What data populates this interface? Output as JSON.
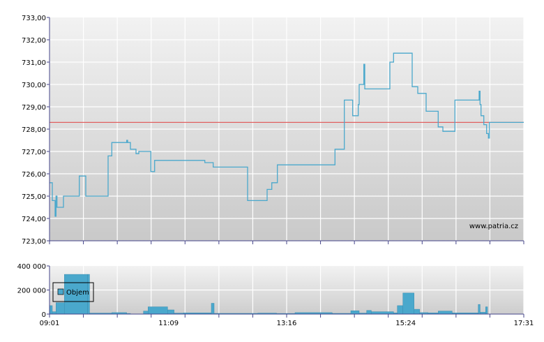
{
  "chart_data": [
    {
      "type": "line",
      "title": "",
      "xlabel": "",
      "ylabel": "",
      "ylim": [
        723,
        733
      ],
      "yticks": [
        "733,00",
        "732,00",
        "731,00",
        "730,00",
        "729,00",
        "728,00",
        "727,00",
        "726,00",
        "725,00",
        "724,00",
        "723,00"
      ],
      "xlim": [
        "09:01",
        "17:31"
      ],
      "reference_line": {
        "value": 728.3,
        "color": "#e06060"
      },
      "watermark": "www.patria.cz",
      "colors": {
        "line": "#4aa8cc",
        "grid": "#ffffff",
        "axis": "#44448a"
      },
      "grid": true,
      "series": [
        {
          "points": [
            [
              "09:01",
              725.6
            ],
            [
              "09:04",
              725.6
            ],
            [
              "09:04",
              724.8
            ],
            [
              "09:07",
              724.8
            ],
            [
              "09:07",
              724.1
            ],
            [
              "09:08",
              724.1
            ],
            [
              "09:08",
              725.0
            ],
            [
              "09:09",
              725.0
            ],
            [
              "09:09",
              724.5
            ],
            [
              "09:16",
              724.5
            ],
            [
              "09:16",
              725.0
            ],
            [
              "09:33",
              725.0
            ],
            [
              "09:33",
              725.9
            ],
            [
              "09:40",
              725.9
            ],
            [
              "09:40",
              725.0
            ],
            [
              "10:04",
              725.0
            ],
            [
              "10:04",
              726.8
            ],
            [
              "10:08",
              726.8
            ],
            [
              "10:08",
              727.4
            ],
            [
              "10:24",
              727.4
            ],
            [
              "10:24",
              727.5
            ],
            [
              "10:25",
              727.5
            ],
            [
              "10:25",
              727.4
            ],
            [
              "10:28",
              727.4
            ],
            [
              "10:28",
              727.1
            ],
            [
              "10:34",
              727.1
            ],
            [
              "10:34",
              726.9
            ],
            [
              "10:37",
              726.9
            ],
            [
              "10:37",
              727.0
            ],
            [
              "10:50",
              727.0
            ],
            [
              "10:50",
              726.1
            ],
            [
              "10:54",
              726.1
            ],
            [
              "10:54",
              726.6
            ],
            [
              "11:48",
              726.6
            ],
            [
              "11:48",
              726.5
            ],
            [
              "11:57",
              726.5
            ],
            [
              "11:57",
              726.3
            ],
            [
              "12:34",
              726.3
            ],
            [
              "12:34",
              724.8
            ],
            [
              "12:55",
              724.8
            ],
            [
              "12:55",
              725.3
            ],
            [
              "13:00",
              725.3
            ],
            [
              "13:00",
              725.6
            ],
            [
              "13:06",
              725.6
            ],
            [
              "13:06",
              726.4
            ],
            [
              "14:08",
              726.4
            ],
            [
              "14:08",
              727.1
            ],
            [
              "14:18",
              727.1
            ],
            [
              "14:18",
              729.3
            ],
            [
              "14:27",
              729.3
            ],
            [
              "14:27",
              728.6
            ],
            [
              "14:33",
              728.6
            ],
            [
              "14:33",
              729.1
            ],
            [
              "14:34",
              729.1
            ],
            [
              "14:34",
              730.0
            ],
            [
              "14:39",
              730.0
            ],
            [
              "14:39",
              730.9
            ],
            [
              "14:40",
              730.9
            ],
            [
              "14:40",
              729.8
            ],
            [
              "15:07",
              729.8
            ],
            [
              "15:07",
              731.0
            ],
            [
              "15:11",
              731.0
            ],
            [
              "15:11",
              731.4
            ],
            [
              "15:31",
              731.4
            ],
            [
              "15:31",
              729.9
            ],
            [
              "15:37",
              729.9
            ],
            [
              "15:37",
              729.6
            ],
            [
              "15:46",
              729.6
            ],
            [
              "15:46",
              728.8
            ],
            [
              "15:59",
              728.8
            ],
            [
              "15:59",
              728.1
            ],
            [
              "16:04",
              728.1
            ],
            [
              "16:04",
              727.9
            ],
            [
              "16:17",
              727.9
            ],
            [
              "16:17",
              729.3
            ],
            [
              "16:43",
              729.3
            ],
            [
              "16:43",
              729.7
            ],
            [
              "16:44",
              729.7
            ],
            [
              "16:44",
              729.1
            ],
            [
              "16:45",
              729.1
            ],
            [
              "16:45",
              728.6
            ],
            [
              "16:48",
              728.6
            ],
            [
              "16:48",
              728.2
            ],
            [
              "16:51",
              728.2
            ],
            [
              "16:51",
              727.8
            ],
            [
              "16:53",
              727.8
            ],
            [
              "16:53",
              727.6
            ],
            [
              "16:54",
              727.6
            ],
            [
              "16:54",
              728.3
            ],
            [
              "17:31",
              728.3
            ]
          ]
        }
      ]
    },
    {
      "type": "bar",
      "title": "",
      "xlabel": "",
      "ylabel": "",
      "ylim": [
        0,
        400000
      ],
      "yticks": [
        "400 000",
        "200 000",
        "0"
      ],
      "xticks": [
        "09:01",
        "11:09",
        "13:16",
        "15:24",
        "17:31"
      ],
      "legend": {
        "entries": [
          {
            "name": "Objem",
            "color": "#4aa8cc"
          }
        ],
        "position": "left"
      },
      "colors": {
        "bar": "#4aa8cc",
        "bar_edge": "#3b8db0"
      },
      "grid": true,
      "series": [
        {
          "name": "Objem",
          "bars": [
            [
              "09:01",
              "09:04",
              70000
            ],
            [
              "09:04",
              "09:08",
              20000
            ],
            [
              "09:08",
              "09:17",
              95000
            ],
            [
              "09:17",
              "09:42",
              330000
            ],
            [
              "09:42",
              "09:44",
              330000
            ],
            [
              "09:44",
              "10:08",
              8000
            ],
            [
              "10:08",
              "10:24",
              12000
            ],
            [
              "10:24",
              "10:28",
              5000
            ],
            [
              "10:42",
              "10:47",
              25000
            ],
            [
              "10:47",
              "11:08",
              60000
            ],
            [
              "11:08",
              "11:15",
              35000
            ],
            [
              "11:15",
              "11:25",
              8000
            ],
            [
              "11:25",
              "11:55",
              10000
            ],
            [
              "11:55",
              "11:58",
              90000
            ],
            [
              "11:58",
              "12:45",
              6000
            ],
            [
              "12:45",
              "13:05",
              8000
            ],
            [
              "13:05",
              "13:25",
              5000
            ],
            [
              "13:25",
              "14:05",
              12000
            ],
            [
              "14:05",
              "14:25",
              6000
            ],
            [
              "14:25",
              "14:34",
              28000
            ],
            [
              "14:34",
              "14:42",
              8000
            ],
            [
              "14:42",
              "14:47",
              30000
            ],
            [
              "14:47",
              "15:11",
              20000
            ],
            [
              "15:11",
              "15:15",
              10000
            ],
            [
              "15:15",
              "15:21",
              70000
            ],
            [
              "15:21",
              "15:33",
              175000
            ],
            [
              "15:33",
              "15:39",
              40000
            ],
            [
              "15:39",
              "15:48",
              12000
            ],
            [
              "15:48",
              "15:59",
              10000
            ],
            [
              "15:59",
              "16:14",
              25000
            ],
            [
              "16:14",
              "16:42",
              10000
            ],
            [
              "16:42",
              "16:44",
              80000
            ],
            [
              "16:44",
              "16:50",
              15000
            ],
            [
              "16:50",
              "16:52",
              60000
            ]
          ]
        }
      ]
    }
  ]
}
